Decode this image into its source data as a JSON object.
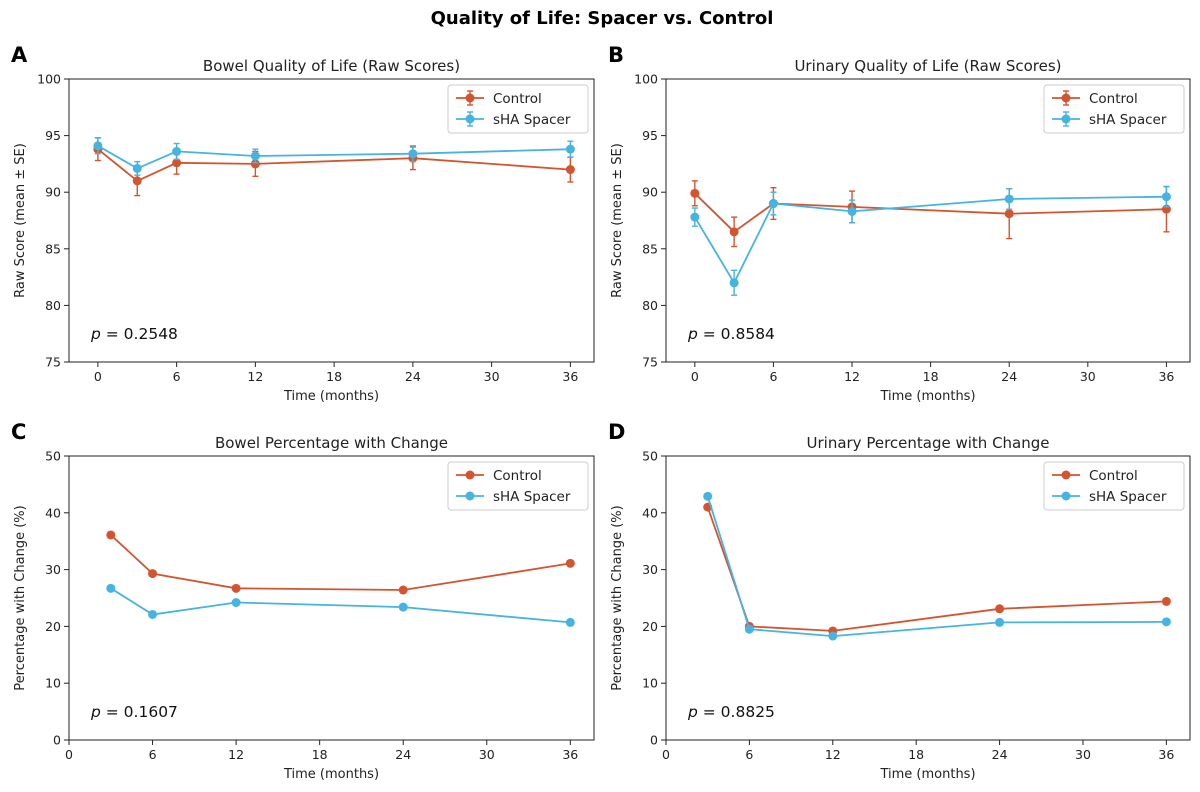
{
  "figure": {
    "title": "Quality of Life: Spacer vs. Control"
  },
  "colors": {
    "control": "#d35530",
    "spacer": "#45b4e0"
  },
  "chart_data": [
    {
      "panel": "A",
      "type": "line",
      "title": "Bowel Quality of Life (Raw Scores)",
      "xlabel": "Time (months)",
      "ylabel": "Raw Score (mean ± SE)",
      "xlim": [
        -2.2,
        37.8
      ],
      "ylim": [
        75,
        100
      ],
      "xticks": [
        0,
        6,
        12,
        18,
        24,
        30,
        36
      ],
      "yticks": [
        75,
        80,
        85,
        90,
        95,
        100
      ],
      "legend": "top-right",
      "error_bars": true,
      "annotation": {
        "pre": "p",
        "post": " = 0.2548"
      },
      "series": [
        {
          "name": "Control",
          "color_key": "control",
          "x": [
            0,
            3,
            6,
            12,
            24,
            36
          ],
          "y": [
            93.8,
            91.0,
            92.6,
            92.5,
            93.0,
            92.0
          ],
          "err": [
            1.0,
            1.3,
            1.0,
            1.1,
            1.0,
            1.1
          ]
        },
        {
          "name": "sHA Spacer",
          "color_key": "spacer",
          "x": [
            0,
            3,
            6,
            12,
            24,
            36
          ],
          "y": [
            94.1,
            92.1,
            93.6,
            93.2,
            93.4,
            93.8
          ],
          "err": [
            0.7,
            0.6,
            0.7,
            0.6,
            0.7,
            0.7
          ]
        }
      ]
    },
    {
      "panel": "B",
      "type": "line",
      "title": "Urinary Quality of Life (Raw Scores)",
      "xlabel": "Time (months)",
      "ylabel": "Raw Score (mean ± SE)",
      "xlim": [
        -2.2,
        37.8
      ],
      "ylim": [
        75,
        100
      ],
      "xticks": [
        0,
        6,
        12,
        18,
        24,
        30,
        36
      ],
      "yticks": [
        75,
        80,
        85,
        90,
        95,
        100
      ],
      "legend": "top-right",
      "error_bars": true,
      "annotation": {
        "pre": "p",
        "post": " = 0.8584"
      },
      "series": [
        {
          "name": "Control",
          "color_key": "control",
          "x": [
            0,
            3,
            6,
            12,
            24,
            36
          ],
          "y": [
            89.9,
            86.5,
            89.0,
            88.7,
            88.1,
            88.5
          ],
          "err": [
            1.1,
            1.3,
            1.4,
            1.4,
            2.2,
            2.0
          ]
        },
        {
          "name": "sHA Spacer",
          "color_key": "spacer",
          "x": [
            0,
            3,
            6,
            12,
            24,
            36
          ],
          "y": [
            87.8,
            82.0,
            89.0,
            88.3,
            89.4,
            89.6
          ],
          "err": [
            0.8,
            1.1,
            1.0,
            1.0,
            0.9,
            0.9
          ]
        }
      ]
    },
    {
      "panel": "C",
      "type": "line",
      "title": "Bowel Percentage with Change",
      "xlabel": "Time (months)",
      "ylabel": "Percentage with Change (%)",
      "xlim": [
        0,
        37.7
      ],
      "ylim": [
        0,
        50
      ],
      "xticks": [
        0,
        6,
        12,
        18,
        24,
        30,
        36
      ],
      "yticks": [
        0,
        10,
        20,
        30,
        40,
        50
      ],
      "legend": "top-right",
      "error_bars": false,
      "annotation": {
        "pre": "p",
        "post": " = 0.1607"
      },
      "series": [
        {
          "name": "Control",
          "color_key": "control",
          "x": [
            3,
            6,
            12,
            24,
            36
          ],
          "y": [
            36.1,
            29.3,
            26.7,
            26.4,
            31.1
          ]
        },
        {
          "name": "sHA Spacer",
          "color_key": "spacer",
          "x": [
            3,
            6,
            12,
            24,
            36
          ],
          "y": [
            26.7,
            22.1,
            24.2,
            23.4,
            20.7
          ]
        }
      ]
    },
    {
      "panel": "D",
      "type": "line",
      "title": "Urinary Percentage with Change",
      "xlabel": "Time (months)",
      "ylabel": "Percentage with Change (%)",
      "xlim": [
        0,
        37.7
      ],
      "ylim": [
        0,
        50
      ],
      "xticks": [
        0,
        6,
        12,
        18,
        24,
        30,
        36
      ],
      "yticks": [
        0,
        10,
        20,
        30,
        40,
        50
      ],
      "legend": "top-right",
      "error_bars": false,
      "annotation": {
        "pre": "p",
        "post": " = 0.8825"
      },
      "series": [
        {
          "name": "Control",
          "color_key": "control",
          "x": [
            3,
            6,
            12,
            24,
            36
          ],
          "y": [
            41.0,
            20.0,
            19.2,
            23.1,
            24.4
          ]
        },
        {
          "name": "sHA Spacer",
          "color_key": "spacer",
          "x": [
            3,
            6,
            12,
            24,
            36
          ],
          "y": [
            42.9,
            19.5,
            18.3,
            20.7,
            20.8
          ]
        }
      ]
    }
  ]
}
